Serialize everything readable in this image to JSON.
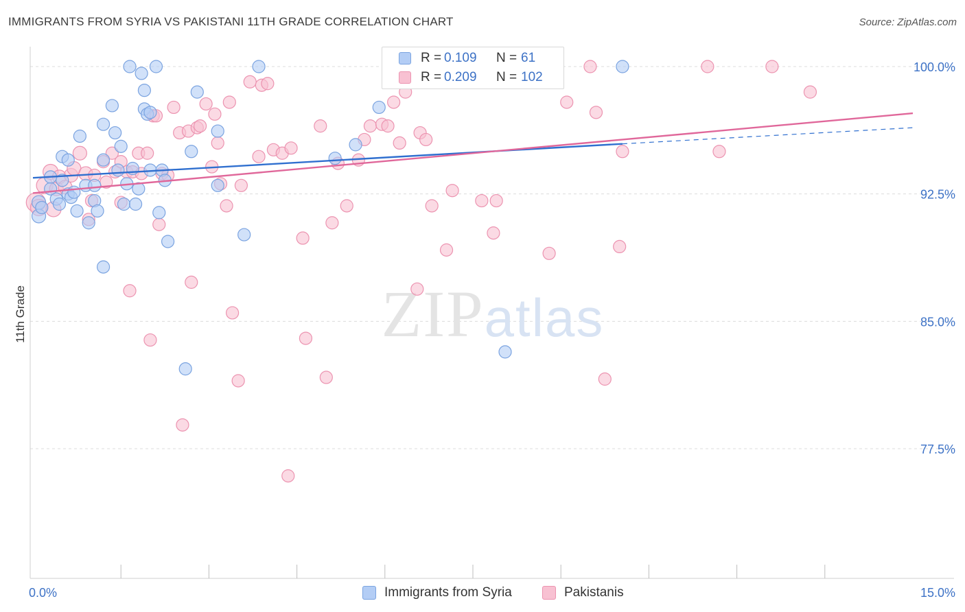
{
  "title": "IMMIGRANTS FROM SYRIA VS PAKISTANI 11TH GRADE CORRELATION CHART",
  "source": {
    "label": "Source:",
    "value": "ZipAtlas.com"
  },
  "watermark": {
    "part1": "ZIP",
    "part2": "atlas"
  },
  "legend": {
    "series1": {
      "r_label": "R =",
      "r_value": "0.109",
      "n_label": "N =",
      "n_value": "61"
    },
    "series2": {
      "r_label": "R =",
      "r_value": "0.209",
      "n_label": "N =",
      "n_value": "102"
    }
  },
  "bottom_legend": {
    "series1": "Immigrants from Syria",
    "series2": "Pakistanis"
  },
  "colors": {
    "syria_fill": "#b3cdf5",
    "syria_stroke": "#7aa3e0",
    "syria_line": "#2f6fcf",
    "pak_fill": "#f8c1d2",
    "pak_stroke": "#ec93b0",
    "pak_line": "#e0679a",
    "axis_label": "#3d72c6",
    "grid": "#dcdcdc"
  },
  "chart_data": {
    "type": "scatter",
    "title": "IMMIGRANTS FROM SYRIA VS PAKISTANI 11TH GRADE CORRELATION CHART",
    "xlabel": "",
    "ylabel": "11th Grade",
    "xlim": [
      0,
      15
    ],
    "ylim": [
      70.0,
      100.8
    ],
    "x_tick_labels": [
      {
        "x": 0,
        "label": "0.0%"
      },
      {
        "x": 15,
        "label": "15.0%"
      }
    ],
    "x_minor_ticks": [
      1.5,
      3.0,
      4.5,
      6.0,
      7.5,
      9.0,
      10.5,
      12.0,
      13.5
    ],
    "y_ticks": [
      {
        "y": 100.0,
        "label": "100.0%"
      },
      {
        "y": 92.5,
        "label": "92.5%"
      },
      {
        "y": 85.0,
        "label": "85.0%"
      },
      {
        "y": 77.5,
        "label": "77.5%"
      }
    ],
    "legend_position": "top-center",
    "series": [
      {
        "name": "Immigrants from Syria",
        "R": 0.109,
        "N": 61,
        "trend": {
          "x0": 0.0,
          "y0": 93.45,
          "x1": 10.05,
          "y1": 95.45,
          "dash_to_x": 15.0,
          "dash_to_y": 96.4
        },
        "points": [
          [
            0.1,
            92.0,
            10
          ],
          [
            0.1,
            91.2,
            10
          ],
          [
            0.15,
            91.7,
            9
          ],
          [
            0.3,
            92.8,
            9
          ],
          [
            0.3,
            93.5,
            9
          ],
          [
            0.4,
            92.2,
            9
          ],
          [
            0.45,
            91.9,
            9
          ],
          [
            0.5,
            93.3,
            9
          ],
          [
            0.5,
            94.7,
            9
          ],
          [
            0.6,
            92.5,
            9
          ],
          [
            0.6,
            94.5,
            9
          ],
          [
            0.65,
            92.3,
            9
          ],
          [
            0.7,
            92.6,
            9
          ],
          [
            0.75,
            91.5,
            9
          ],
          [
            0.8,
            95.9,
            9
          ],
          [
            0.9,
            93.0,
            9
          ],
          [
            0.95,
            90.8,
            9
          ],
          [
            1.05,
            93.0,
            9
          ],
          [
            1.05,
            92.1,
            9
          ],
          [
            1.1,
            91.5,
            9
          ],
          [
            1.2,
            96.6,
            9
          ],
          [
            1.2,
            94.5,
            9
          ],
          [
            1.2,
            88.2,
            9
          ],
          [
            1.35,
            97.7,
            9
          ],
          [
            1.4,
            96.1,
            9
          ],
          [
            1.45,
            93.9,
            9
          ],
          [
            1.5,
            95.3,
            9
          ],
          [
            1.55,
            91.9,
            9
          ],
          [
            1.6,
            93.1,
            9
          ],
          [
            1.65,
            100.0,
            9
          ],
          [
            1.7,
            94.0,
            9
          ],
          [
            1.75,
            91.9,
            9
          ],
          [
            1.8,
            92.8,
            9
          ],
          [
            1.85,
            99.6,
            9
          ],
          [
            1.9,
            97.5,
            9
          ],
          [
            1.9,
            98.6,
            9
          ],
          [
            1.95,
            97.2,
            9
          ],
          [
            2.0,
            97.3,
            9
          ],
          [
            2.0,
            93.9,
            9
          ],
          [
            2.1,
            100.0,
            9
          ],
          [
            2.15,
            91.4,
            9
          ],
          [
            2.2,
            93.9,
            9
          ],
          [
            2.25,
            93.3,
            9
          ],
          [
            2.3,
            89.7,
            9
          ],
          [
            2.6,
            82.2,
            9
          ],
          [
            2.7,
            95.0,
            9
          ],
          [
            2.8,
            98.5,
            9
          ],
          [
            3.15,
            96.2,
            9
          ],
          [
            3.15,
            93.0,
            9
          ],
          [
            3.6,
            90.1,
            9
          ],
          [
            3.85,
            100.0,
            9
          ],
          [
            5.15,
            94.6,
            9
          ],
          [
            5.5,
            95.4,
            9
          ],
          [
            5.9,
            97.6,
            9
          ],
          [
            8.05,
            83.2,
            9
          ],
          [
            10.05,
            100.0,
            9
          ]
        ]
      },
      {
        "name": "Pakistanis",
        "R": 0.209,
        "N": 102,
        "trend": {
          "x0": 0.0,
          "y0": 92.55,
          "x1": 15.0,
          "y1": 97.25
        },
        "points": [
          [
            0.05,
            92.0,
            14
          ],
          [
            0.1,
            91.7,
            12
          ],
          [
            0.2,
            93.0,
            12
          ],
          [
            0.3,
            93.8,
            11
          ],
          [
            0.35,
            91.6,
            11
          ],
          [
            0.4,
            92.8,
            10
          ],
          [
            0.45,
            93.5,
            10
          ],
          [
            0.55,
            92.9,
            10
          ],
          [
            0.65,
            93.6,
            10
          ],
          [
            0.7,
            94.0,
            10
          ],
          [
            0.8,
            94.9,
            10
          ],
          [
            0.9,
            93.7,
            10
          ],
          [
            0.95,
            91.0,
            9
          ],
          [
            1.0,
            92.1,
            9
          ],
          [
            1.05,
            93.6,
            9
          ],
          [
            1.2,
            94.4,
            9
          ],
          [
            1.25,
            93.2,
            9
          ],
          [
            1.35,
            94.9,
            9
          ],
          [
            1.4,
            93.8,
            9
          ],
          [
            1.5,
            94.4,
            9
          ],
          [
            1.5,
            92.0,
            9
          ],
          [
            1.6,
            93.8,
            9
          ],
          [
            1.65,
            86.8,
            9
          ],
          [
            1.7,
            93.8,
            9
          ],
          [
            1.8,
            94.9,
            9
          ],
          [
            1.85,
            93.7,
            9
          ],
          [
            1.95,
            94.9,
            9
          ],
          [
            2.0,
            83.9,
            9
          ],
          [
            2.05,
            97.1,
            9
          ],
          [
            2.1,
            97.1,
            9
          ],
          [
            2.15,
            90.7,
            9
          ],
          [
            2.2,
            93.7,
            9
          ],
          [
            2.3,
            93.6,
            9
          ],
          [
            2.4,
            97.6,
            9
          ],
          [
            2.5,
            96.1,
            9
          ],
          [
            2.55,
            78.9,
            9
          ],
          [
            2.65,
            96.2,
            9
          ],
          [
            2.7,
            87.3,
            9
          ],
          [
            2.8,
            96.4,
            9
          ],
          [
            2.85,
            96.5,
            9
          ],
          [
            2.95,
            97.8,
            9
          ],
          [
            3.05,
            94.1,
            9
          ],
          [
            3.1,
            97.2,
            9
          ],
          [
            3.15,
            95.5,
            9
          ],
          [
            3.2,
            93.1,
            9
          ],
          [
            3.3,
            91.8,
            9
          ],
          [
            3.35,
            97.9,
            9
          ],
          [
            3.4,
            85.5,
            9
          ],
          [
            3.5,
            81.5,
            9
          ],
          [
            3.55,
            93.0,
            9
          ],
          [
            3.7,
            99.1,
            9
          ],
          [
            3.85,
            94.7,
            9
          ],
          [
            3.9,
            98.9,
            9
          ],
          [
            4.0,
            99.0,
            9
          ],
          [
            4.1,
            95.1,
            9
          ],
          [
            4.25,
            94.9,
            9
          ],
          [
            4.35,
            75.9,
            9
          ],
          [
            4.4,
            95.2,
            9
          ],
          [
            4.6,
            89.9,
            9
          ],
          [
            4.65,
            84.0,
            9
          ],
          [
            4.9,
            96.5,
            9
          ],
          [
            5.0,
            81.7,
            9
          ],
          [
            5.1,
            90.8,
            9
          ],
          [
            5.2,
            94.3,
            9
          ],
          [
            5.35,
            91.8,
            9
          ],
          [
            5.55,
            94.5,
            9
          ],
          [
            5.65,
            95.7,
            9
          ],
          [
            5.75,
            96.5,
            9
          ],
          [
            5.95,
            96.6,
            9
          ],
          [
            6.05,
            96.5,
            9
          ],
          [
            6.15,
            97.9,
            9
          ],
          [
            6.25,
            95.5,
            9
          ],
          [
            6.35,
            98.5,
            9
          ],
          [
            6.45,
            99.5,
            9
          ],
          [
            6.55,
            86.9,
            9
          ],
          [
            6.6,
            96.1,
            9
          ],
          [
            6.7,
            95.7,
            9
          ],
          [
            6.8,
            91.8,
            9
          ],
          [
            6.9,
            100.0,
            9
          ],
          [
            7.05,
            89.2,
            9
          ],
          [
            7.15,
            92.7,
            9
          ],
          [
            7.5,
            100.0,
            9
          ],
          [
            7.65,
            92.1,
            9
          ],
          [
            7.85,
            90.2,
            9
          ],
          [
            7.9,
            92.1,
            9
          ],
          [
            8.8,
            89.0,
            9
          ],
          [
            8.9,
            100.0,
            9
          ],
          [
            9.1,
            97.9,
            9
          ],
          [
            9.5,
            100.0,
            9
          ],
          [
            9.6,
            97.3,
            9
          ],
          [
            9.75,
            81.6,
            9
          ],
          [
            10.0,
            89.4,
            9
          ],
          [
            10.05,
            95.0,
            9
          ],
          [
            11.5,
            100.0,
            9
          ],
          [
            11.7,
            95.0,
            9
          ],
          [
            12.6,
            100.0,
            9
          ],
          [
            13.25,
            98.5,
            9
          ]
        ]
      }
    ]
  }
}
